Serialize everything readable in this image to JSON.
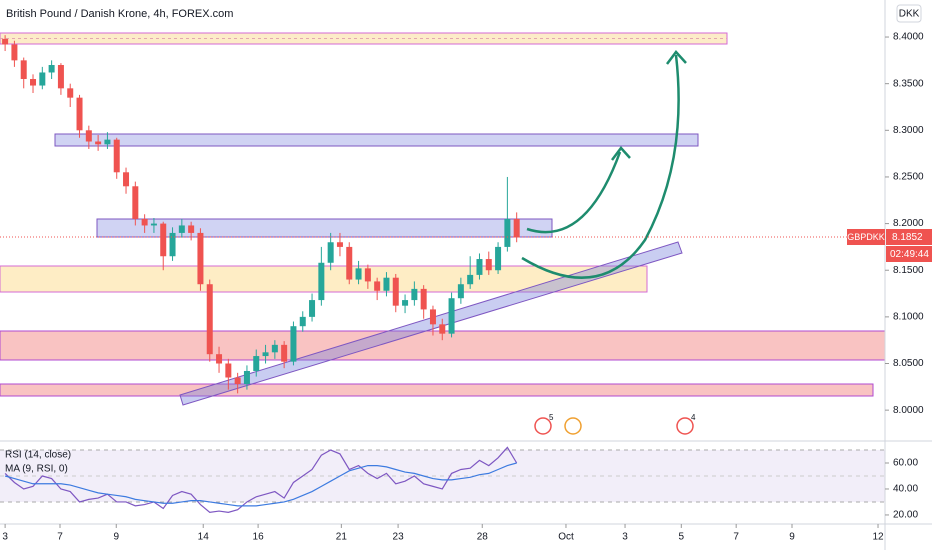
{
  "chart_data": {
    "type": "candlestick",
    "title": "British Pound / Danish Krone, 4h, FOREX.com",
    "currency": "DKK",
    "up_color": "#26a69a",
    "down_color": "#ef5350",
    "xlim": [
      -1.1,
      189.2
    ],
    "xticks": [
      {
        "value": 0,
        "label": "3"
      },
      {
        "value": 11.8,
        "label": "7"
      },
      {
        "value": 23.9,
        "label": "9"
      },
      {
        "value": 42.6,
        "label": "14"
      },
      {
        "value": 54.4,
        "label": "16"
      },
      {
        "value": 72.3,
        "label": "21"
      },
      {
        "value": 84.5,
        "label": "23"
      },
      {
        "value": 102.6,
        "label": "28"
      },
      {
        "value": 120.6,
        "label": "Oct"
      },
      {
        "value": 133.3,
        "label": "3"
      },
      {
        "value": 145.4,
        "label": "5"
      },
      {
        "value": 157.2,
        "label": "7"
      },
      {
        "value": 169.2,
        "label": "9"
      },
      {
        "value": 187.7,
        "label": "12"
      }
    ],
    "ylim": [
      7.968,
      8.4397
    ],
    "yticks": [
      {
        "value": 8.0,
        "label": "8.0000"
      },
      {
        "value": 8.05,
        "label": "8.0500"
      },
      {
        "value": 8.1,
        "label": "8.1000"
      },
      {
        "value": 8.15,
        "label": "8.1500"
      },
      {
        "value": 8.2,
        "label": "8.2000"
      },
      {
        "value": 8.25,
        "label": "8.2500"
      },
      {
        "value": 8.3,
        "label": "8.3000"
      },
      {
        "value": 8.35,
        "label": "8.3500"
      },
      {
        "value": 8.4,
        "label": "8.4000"
      }
    ],
    "x": [
      0,
      2,
      4,
      6,
      8,
      10,
      12,
      14,
      16,
      18,
      20,
      22,
      24,
      26,
      28,
      30,
      32,
      34,
      36,
      38,
      40,
      42,
      44,
      46,
      48,
      50,
      52,
      54,
      56,
      58,
      60,
      62,
      64,
      66,
      68,
      70,
      72,
      74,
      76,
      78,
      80,
      82,
      84,
      86,
      88,
      90,
      92,
      94,
      96,
      98,
      100,
      102,
      104,
      106,
      108,
      110
    ],
    "open": [
      8.398,
      8.392,
      8.375,
      8.355,
      8.348,
      8.362,
      8.37,
      8.345,
      8.335,
      8.3,
      8.288,
      8.285,
      8.29,
      8.255,
      8.24,
      8.205,
      8.198,
      8.2,
      8.165,
      8.19,
      8.198,
      8.19,
      8.135,
      8.06,
      8.05,
      8.035,
      8.028,
      8.042,
      8.058,
      8.062,
      8.07,
      8.052,
      8.09,
      8.1,
      8.118,
      8.158,
      8.18,
      8.175,
      8.14,
      8.152,
      8.138,
      8.128,
      8.142,
      8.112,
      8.118,
      8.13,
      8.108,
      8.092,
      8.082,
      8.12,
      8.135,
      8.145,
      8.162,
      8.15,
      8.175,
      8.205
    ],
    "high": [
      8.402,
      8.396,
      8.378,
      8.36,
      8.368,
      8.375,
      8.372,
      8.35,
      8.338,
      8.305,
      8.295,
      8.298,
      8.292,
      8.26,
      8.245,
      8.21,
      8.206,
      8.202,
      8.196,
      8.205,
      8.202,
      8.195,
      8.14,
      8.068,
      8.055,
      8.04,
      8.048,
      8.065,
      8.07,
      8.075,
      8.074,
      8.095,
      8.106,
      8.125,
      8.175,
      8.19,
      8.19,
      8.18,
      8.16,
      8.156,
      8.142,
      8.148,
      8.146,
      8.124,
      8.138,
      8.134,
      8.112,
      8.098,
      8.126,
      8.142,
      8.165,
      8.168,
      8.17,
      8.18,
      8.25,
      8.212
    ],
    "low": [
      8.385,
      8.368,
      8.345,
      8.34,
      8.344,
      8.355,
      8.338,
      8.325,
      8.292,
      8.28,
      8.278,
      8.28,
      8.248,
      8.232,
      8.198,
      8.19,
      8.19,
      8.15,
      8.16,
      8.185,
      8.182,
      8.128,
      8.052,
      8.04,
      8.022,
      8.018,
      8.022,
      8.036,
      8.05,
      8.055,
      8.045,
      8.048,
      8.084,
      8.095,
      8.112,
      8.15,
      8.165,
      8.135,
      8.135,
      8.13,
      8.118,
      8.122,
      8.105,
      8.104,
      8.112,
      8.098,
      8.08,
      8.075,
      8.078,
      8.114,
      8.13,
      8.14,
      8.145,
      8.146,
      8.17,
      8.18
    ],
    "close": [
      8.392,
      8.375,
      8.355,
      8.348,
      8.362,
      8.37,
      8.345,
      8.335,
      8.3,
      8.288,
      8.285,
      8.29,
      8.255,
      8.24,
      8.205,
      8.198,
      8.2,
      8.165,
      8.19,
      8.198,
      8.19,
      8.135,
      8.06,
      8.05,
      8.035,
      8.028,
      8.042,
      8.058,
      8.062,
      8.07,
      8.052,
      8.09,
      8.1,
      8.118,
      8.158,
      8.18,
      8.175,
      8.14,
      8.152,
      8.138,
      8.128,
      8.142,
      8.112,
      8.118,
      8.13,
      8.108,
      8.092,
      8.082,
      8.12,
      8.135,
      8.145,
      8.162,
      8.15,
      8.175,
      8.205,
      8.1852
    ],
    "price_tag": {
      "symbol": "GBPDKK",
      "label": "8.1852",
      "countdown": "02:49:44"
    },
    "event_badges": [
      "5",
      "4"
    ],
    "indicator": {
      "y2lim": [
        13.8,
        75.4
      ],
      "y2ticks": [
        {
          "value": 20,
          "label": "20.00"
        },
        {
          "value": 40,
          "label": "40.00"
        },
        {
          "value": 60,
          "label": "60.00"
        }
      ],
      "series": [
        {
          "name": "RSI (14, close)",
          "color": "#7e57c2",
          "axis": "y2",
          "values": [
            52,
            45,
            40,
            42,
            50,
            48,
            40,
            38,
            30,
            32,
            33,
            36,
            30,
            30,
            27,
            28,
            30,
            25,
            35,
            38,
            36,
            28,
            22,
            23,
            22,
            24,
            30,
            34,
            36,
            38,
            33,
            45,
            50,
            55,
            66,
            70,
            67,
            55,
            58,
            52,
            48,
            52,
            44,
            46,
            50,
            44,
            42,
            40,
            52,
            55,
            56,
            62,
            58,
            64,
            72,
            60
          ]
        },
        {
          "name": "MA (9, RSI, 0)",
          "color": "#3d7be0",
          "axis": "y2",
          "values": [
            50,
            48,
            46,
            44,
            44,
            44,
            44,
            43,
            41,
            39,
            37,
            36,
            35,
            34,
            32,
            31,
            30,
            29,
            29,
            30,
            31,
            31,
            30,
            29,
            28,
            27,
            27,
            27,
            28,
            29,
            30,
            32,
            35,
            38,
            42,
            46,
            50,
            54,
            56,
            58,
            58,
            57,
            55,
            53,
            52,
            50,
            48,
            47,
            47,
            48,
            49,
            51,
            52,
            55,
            58,
            60
          ]
        }
      ]
    }
  }
}
